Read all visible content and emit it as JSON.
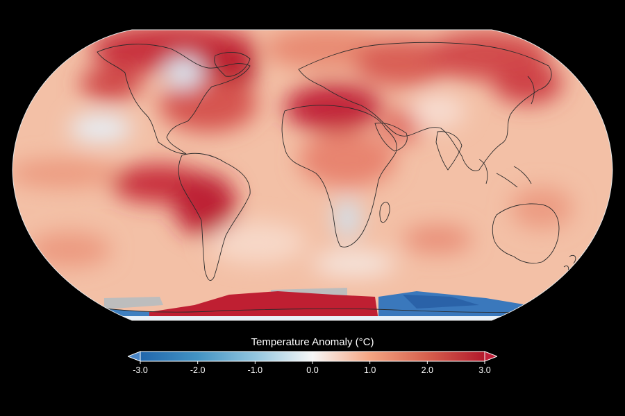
{
  "map": {
    "projection": "robinson",
    "background": "#000000",
    "land_outline_color": "#2a2a2a",
    "no_data_color": "#bdbdbd"
  },
  "colorbar": {
    "title": "Temperature Anomaly (°C)",
    "min": -3.0,
    "max": 3.0,
    "extend": "both",
    "ticks": [
      "-3.0",
      "-2.0",
      "-1.0",
      "0.0",
      "1.0",
      "2.0",
      "3.0"
    ],
    "colors": [
      "#2166ac",
      "#4393c3",
      "#92c5de",
      "#f7f7f7",
      "#f4a582",
      "#d6604d",
      "#b2182b"
    ],
    "low_extend_color": "#4a86c6",
    "high_extend_color": "#c0213a"
  }
}
